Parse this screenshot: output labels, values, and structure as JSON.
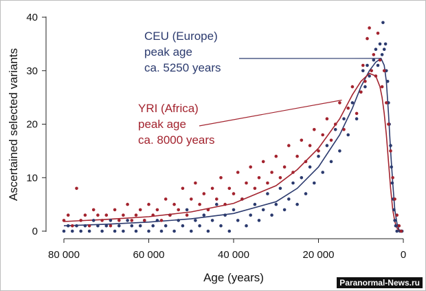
{
  "chart_data": {
    "type": "scatter",
    "xlabel": "Age (years)",
    "ylabel": "Ascertained selected variants",
    "xlim": [
      80000,
      0
    ],
    "ylim": [
      0,
      40
    ],
    "x_ticks": [
      80000,
      60000,
      40000,
      20000,
      0
    ],
    "x_tick_labels": [
      "80 000",
      "60 000",
      "40 000",
      "20 000",
      "0"
    ],
    "y_ticks": [
      0,
      10,
      20,
      30,
      40
    ],
    "y_tick_labels": [
      "0",
      "10",
      "20",
      "30",
      "40"
    ],
    "grid": false,
    "legend": "none",
    "series": [
      {
        "name": "CEU (Europe)",
        "color": "#2b3a6e",
        "peak_age": 5250,
        "fit_curve": [
          [
            80000,
            1.0
          ],
          [
            70000,
            1.3
          ],
          [
            60000,
            1.7
          ],
          [
            50000,
            2.3
          ],
          [
            40000,
            3.3
          ],
          [
            30000,
            5.5
          ],
          [
            25000,
            8
          ],
          [
            20000,
            12
          ],
          [
            15000,
            18
          ],
          [
            12000,
            23
          ],
          [
            10000,
            27
          ],
          [
            8000,
            30
          ],
          [
            6500,
            31.6
          ],
          [
            5250,
            32.3
          ],
          [
            4500,
            31
          ],
          [
            4000,
            28
          ],
          [
            3500,
            22
          ],
          [
            3000,
            15
          ],
          [
            2500,
            9
          ],
          [
            2000,
            4
          ],
          [
            1500,
            1.5
          ],
          [
            1000,
            0.2
          ],
          [
            0,
            0
          ]
        ],
        "points": [
          [
            80000,
            0
          ],
          [
            79000,
            1
          ],
          [
            78000,
            0
          ],
          [
            77000,
            1
          ],
          [
            76000,
            0
          ],
          [
            75000,
            1
          ],
          [
            74000,
            0
          ],
          [
            73000,
            2
          ],
          [
            72000,
            1
          ],
          [
            71000,
            0
          ],
          [
            70000,
            1
          ],
          [
            69000,
            2
          ],
          [
            68000,
            0
          ],
          [
            67000,
            1
          ],
          [
            66000,
            0
          ],
          [
            65000,
            2
          ],
          [
            64000,
            1
          ],
          [
            63000,
            0
          ],
          [
            62000,
            1
          ],
          [
            61000,
            2
          ],
          [
            60000,
            0
          ],
          [
            59000,
            1
          ],
          [
            58000,
            2
          ],
          [
            57000,
            0
          ],
          [
            56000,
            1
          ],
          [
            55000,
            3
          ],
          [
            54000,
            0
          ],
          [
            53000,
            2
          ],
          [
            52000,
            1
          ],
          [
            51000,
            4
          ],
          [
            50000,
            0
          ],
          [
            49000,
            2
          ],
          [
            48000,
            1
          ],
          [
            47000,
            3
          ],
          [
            46000,
            0
          ],
          [
            45000,
            2
          ],
          [
            44000,
            5
          ],
          [
            43000,
            1
          ],
          [
            42000,
            3
          ],
          [
            41000,
            0
          ],
          [
            40000,
            4
          ],
          [
            39000,
            2
          ],
          [
            38000,
            6
          ],
          [
            37000,
            1
          ],
          [
            36000,
            3
          ],
          [
            35000,
            5
          ],
          [
            34000,
            2
          ],
          [
            33000,
            4
          ],
          [
            32000,
            7
          ],
          [
            31000,
            3
          ],
          [
            30000,
            5
          ],
          [
            29000,
            8
          ],
          [
            28000,
            4
          ],
          [
            27000,
            6
          ],
          [
            26000,
            9
          ],
          [
            25000,
            5
          ],
          [
            24000,
            10
          ],
          [
            23000,
            7
          ],
          [
            22000,
            12
          ],
          [
            21000,
            9
          ],
          [
            20000,
            14
          ],
          [
            19000,
            11
          ],
          [
            18000,
            16
          ],
          [
            17000,
            13
          ],
          [
            16000,
            19
          ],
          [
            15000,
            15
          ],
          [
            14000,
            21
          ],
          [
            13000,
            18
          ],
          [
            12000,
            24
          ],
          [
            11000,
            21
          ],
          [
            10000,
            26
          ],
          [
            9500,
            30
          ],
          [
            9000,
            27
          ],
          [
            8500,
            31
          ],
          [
            8000,
            29
          ],
          [
            7000,
            32
          ],
          [
            6500,
            34
          ],
          [
            6000,
            31
          ],
          [
            5500,
            35
          ],
          [
            5000,
            33
          ],
          [
            4800,
            39
          ],
          [
            4500,
            34
          ],
          [
            4200,
            35
          ],
          [
            4000,
            30
          ],
          [
            3700,
            28
          ],
          [
            3500,
            24
          ],
          [
            3300,
            20
          ],
          [
            3000,
            16
          ],
          [
            2800,
            12
          ],
          [
            2600,
            9
          ],
          [
            2400,
            6
          ],
          [
            2200,
            4
          ],
          [
            2000,
            2
          ],
          [
            1800,
            1
          ],
          [
            1500,
            0
          ],
          [
            1200,
            1
          ],
          [
            800,
            0
          ],
          [
            500,
            0
          ],
          [
            300,
            0
          ]
        ]
      },
      {
        "name": "YRI (Africa)",
        "color": "#a3232e",
        "peak_age": 8000,
        "fit_curve": [
          [
            80000,
            1.8
          ],
          [
            70000,
            2.2
          ],
          [
            60000,
            2.7
          ],
          [
            50000,
            3.6
          ],
          [
            40000,
            5.2
          ],
          [
            30000,
            8.5
          ],
          [
            25000,
            11.5
          ],
          [
            20000,
            15.5
          ],
          [
            15000,
            21
          ],
          [
            12000,
            25.5
          ],
          [
            10000,
            28
          ],
          [
            8000,
            29.5
          ],
          [
            6500,
            29
          ],
          [
            5500,
            27
          ],
          [
            5000,
            25
          ],
          [
            4500,
            22
          ],
          [
            4000,
            18
          ],
          [
            3500,
            13
          ],
          [
            3000,
            8
          ],
          [
            2500,
            4
          ],
          [
            2000,
            1.8
          ],
          [
            1500,
            0.6
          ],
          [
            1000,
            0.1
          ],
          [
            0,
            0
          ]
        ],
        "points": [
          [
            80000,
            2
          ],
          [
            79000,
            3
          ],
          [
            78000,
            1
          ],
          [
            77000,
            8
          ],
          [
            76000,
            2
          ],
          [
            75000,
            3
          ],
          [
            74000,
            1
          ],
          [
            73000,
            4
          ],
          [
            72000,
            3
          ],
          [
            71000,
            2
          ],
          [
            70000,
            3
          ],
          [
            69000,
            1
          ],
          [
            68000,
            4
          ],
          [
            67000,
            2
          ],
          [
            66000,
            3
          ],
          [
            65000,
            5
          ],
          [
            64000,
            2
          ],
          [
            63000,
            3
          ],
          [
            62000,
            4
          ],
          [
            61000,
            2
          ],
          [
            60000,
            5
          ],
          [
            59000,
            3
          ],
          [
            58000,
            4
          ],
          [
            57000,
            2
          ],
          [
            56000,
            6
          ],
          [
            55000,
            3
          ],
          [
            54000,
            5
          ],
          [
            53000,
            4
          ],
          [
            52000,
            8
          ],
          [
            51000,
            3
          ],
          [
            50000,
            6
          ],
          [
            49000,
            9
          ],
          [
            48000,
            5
          ],
          [
            47000,
            7
          ],
          [
            46000,
            4
          ],
          [
            45000,
            8
          ],
          [
            44000,
            6
          ],
          [
            43000,
            10
          ],
          [
            42000,
            5
          ],
          [
            41000,
            8
          ],
          [
            40000,
            7
          ],
          [
            39000,
            11
          ],
          [
            38000,
            6
          ],
          [
            37000,
            9
          ],
          [
            36000,
            12
          ],
          [
            35000,
            8
          ],
          [
            34000,
            10
          ],
          [
            33000,
            13
          ],
          [
            32000,
            9
          ],
          [
            31000,
            11
          ],
          [
            30000,
            14
          ],
          [
            29000,
            10
          ],
          [
            28000,
            12
          ],
          [
            27000,
            16
          ],
          [
            26000,
            11
          ],
          [
            25000,
            14
          ],
          [
            24000,
            17
          ],
          [
            23000,
            13
          ],
          [
            22000,
            16
          ],
          [
            21000,
            19
          ],
          [
            20000,
            15
          ],
          [
            19000,
            18
          ],
          [
            18000,
            21
          ],
          [
            17000,
            17
          ],
          [
            16000,
            20
          ],
          [
            15000,
            24
          ],
          [
            14000,
            19
          ],
          [
            13000,
            23
          ],
          [
            12000,
            27
          ],
          [
            11000,
            22
          ],
          [
            10000,
            26
          ],
          [
            9500,
            31
          ],
          [
            9000,
            28
          ],
          [
            8500,
            36
          ],
          [
            8000,
            38
          ],
          [
            7500,
            30
          ],
          [
            7000,
            33
          ],
          [
            6500,
            29
          ],
          [
            6000,
            37
          ],
          [
            5500,
            32
          ],
          [
            5000,
            27
          ],
          [
            4500,
            30
          ],
          [
            4000,
            24
          ],
          [
            3500,
            20
          ],
          [
            3000,
            15
          ],
          [
            2500,
            10
          ],
          [
            2000,
            6
          ],
          [
            1500,
            3
          ],
          [
            1000,
            1
          ],
          [
            500,
            0
          ]
        ]
      }
    ],
    "annotations": [
      {
        "series": "CEU (Europe)",
        "lines": [
          "CEU (Europe)",
          "peak age",
          "ca. 5250 years"
        ],
        "points_to": [
          5250,
          32.3
        ],
        "color": "#2b3a6e"
      },
      {
        "series": "YRI (Africa)",
        "lines": [
          "YRI (Africa)",
          "peak age",
          "ca. 8000 years"
        ],
        "points_to": [
          14500,
          24.5
        ],
        "color": "#a3232e"
      }
    ]
  },
  "watermark": "Paranormal-News.ru"
}
